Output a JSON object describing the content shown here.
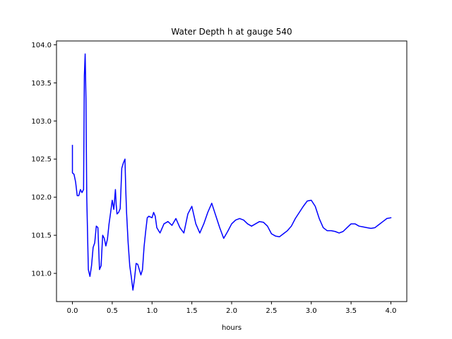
{
  "chart_data": {
    "type": "line",
    "title": "Water Depth h at gauge 540",
    "xlabel": "hours",
    "ylabel": "",
    "xlim": [
      -0.2,
      4.2
    ],
    "ylim": [
      100.63,
      104.05
    ],
    "xticks": [
      0.0,
      0.5,
      1.0,
      1.5,
      2.0,
      2.5,
      3.0,
      3.5,
      4.0
    ],
    "xtick_labels": [
      "0.0",
      "0.5",
      "1.0",
      "1.5",
      "2.0",
      "2.5",
      "3.0",
      "3.5",
      "4.0"
    ],
    "yticks": [
      101.0,
      101.5,
      102.0,
      102.5,
      103.0,
      103.5,
      104.0
    ],
    "ytick_labels": [
      "101.0",
      "101.5",
      "102.0",
      "102.5",
      "103.0",
      "103.5",
      "104.0"
    ],
    "grid": false,
    "series": [
      {
        "color": "#0000ff",
        "x": [
          0.0,
          0.0,
          0.02,
          0.04,
          0.06,
          0.08,
          0.1,
          0.12,
          0.14,
          0.15,
          0.16,
          0.17,
          0.18,
          0.2,
          0.22,
          0.24,
          0.26,
          0.28,
          0.3,
          0.32,
          0.34,
          0.36,
          0.38,
          0.4,
          0.42,
          0.44,
          0.46,
          0.48,
          0.5,
          0.52,
          0.54,
          0.55,
          0.56,
          0.58,
          0.6,
          0.62,
          0.64,
          0.66,
          0.67,
          0.68,
          0.7,
          0.72,
          0.74,
          0.76,
          0.78,
          0.8,
          0.82,
          0.84,
          0.86,
          0.88,
          0.9,
          0.92,
          0.94,
          0.96,
          1.0,
          1.02,
          1.04,
          1.06,
          1.1,
          1.15,
          1.2,
          1.25,
          1.3,
          1.35,
          1.4,
          1.45,
          1.5,
          1.55,
          1.6,
          1.65,
          1.7,
          1.75,
          1.8,
          1.85,
          1.9,
          1.95,
          2.0,
          2.05,
          2.1,
          2.15,
          2.2,
          2.25,
          2.3,
          2.35,
          2.4,
          2.45,
          2.5,
          2.55,
          2.6,
          2.65,
          2.7,
          2.75,
          2.8,
          2.85,
          2.9,
          2.95,
          3.0,
          3.05,
          3.1,
          3.15,
          3.2,
          3.25,
          3.3,
          3.35,
          3.4,
          3.45,
          3.5,
          3.55,
          3.6,
          3.65,
          3.7,
          3.75,
          3.8,
          3.85,
          3.9,
          3.95,
          4.0
        ],
        "y": [
          102.68,
          102.32,
          102.3,
          102.2,
          102.02,
          102.02,
          102.1,
          102.06,
          102.1,
          103.6,
          103.88,
          103.3,
          102.0,
          101.05,
          100.96,
          101.1,
          101.34,
          101.4,
          101.62,
          101.6,
          101.05,
          101.1,
          101.5,
          101.46,
          101.36,
          101.45,
          101.65,
          101.8,
          101.96,
          101.84,
          102.1,
          101.9,
          101.78,
          101.8,
          101.85,
          102.38,
          102.45,
          102.5,
          102.1,
          101.8,
          101.4,
          101.1,
          100.95,
          100.78,
          100.93,
          101.13,
          101.12,
          101.05,
          100.98,
          101.05,
          101.35,
          101.55,
          101.73,
          101.75,
          101.73,
          101.8,
          101.75,
          101.6,
          101.53,
          101.65,
          101.68,
          101.63,
          101.72,
          101.6,
          101.53,
          101.78,
          101.88,
          101.65,
          101.53,
          101.65,
          101.8,
          101.92,
          101.76,
          101.6,
          101.46,
          101.55,
          101.65,
          101.7,
          101.72,
          101.7,
          101.65,
          101.62,
          101.65,
          101.68,
          101.67,
          101.62,
          101.52,
          101.49,
          101.48,
          101.52,
          101.56,
          101.62,
          101.72,
          101.8,
          101.88,
          101.95,
          101.96,
          101.88,
          101.72,
          101.6,
          101.56,
          101.56,
          101.55,
          101.53,
          101.55,
          101.6,
          101.65,
          101.65,
          101.62,
          101.61,
          101.6,
          101.59,
          101.6,
          101.64,
          101.68,
          101.72,
          101.73
        ]
      }
    ]
  }
}
